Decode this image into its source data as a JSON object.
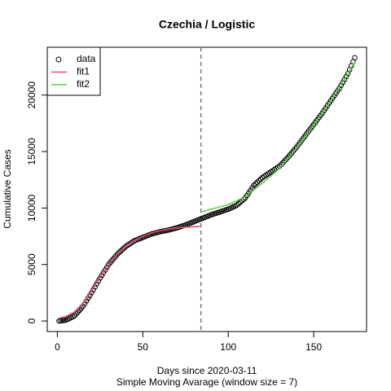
{
  "chart_data": {
    "type": "scatter",
    "title": "Czechia / Logistic",
    "xlabel": "Days since 2020-03-11",
    "subtitle": "Simple Moving Avarage (window size = 7)",
    "ylabel": "Cumulative Cases",
    "xlim": [
      -5.92,
      180.92
    ],
    "ylim": [
      -932,
      24232
    ],
    "xticks": [
      0,
      50,
      100,
      150
    ],
    "yticks": [
      0,
      5000,
      10000,
      15000,
      20000
    ],
    "vline": 84,
    "legend": "topleft",
    "series": [
      {
        "name": "data",
        "color": "#000000",
        "style": "points",
        "x": [
          1,
          2,
          3,
          4,
          5,
          6,
          7,
          8,
          9,
          10,
          11,
          12,
          13,
          14,
          15,
          16,
          17,
          18,
          19,
          20,
          21,
          22,
          23,
          24,
          25,
          26,
          27,
          28,
          29,
          30,
          31,
          32,
          33,
          34,
          35,
          36,
          37,
          38,
          39,
          40,
          41,
          42,
          43,
          44,
          45,
          46,
          47,
          48,
          49,
          50,
          51,
          52,
          53,
          54,
          55,
          56,
          57,
          58,
          59,
          60,
          61,
          62,
          63,
          64,
          65,
          66,
          67,
          68,
          69,
          70,
          71,
          72,
          73,
          74,
          75,
          76,
          77,
          78,
          79,
          80,
          81,
          82,
          83,
          84,
          85,
          86,
          87,
          88,
          89,
          90,
          91,
          92,
          93,
          94,
          95,
          96,
          97,
          98,
          99,
          100,
          101,
          102,
          103,
          104,
          105,
          106,
          107,
          108,
          109,
          110,
          111,
          112,
          113,
          114,
          115,
          116,
          117,
          118,
          119,
          120,
          121,
          122,
          123,
          124,
          125,
          126,
          127,
          128,
          129,
          130,
          131,
          132,
          133,
          134,
          135,
          136,
          137,
          138,
          139,
          140,
          141,
          142,
          143,
          144,
          145,
          146,
          147,
          148,
          149,
          150,
          151,
          152,
          153,
          154,
          155,
          156,
          157,
          158,
          159,
          160,
          161,
          162,
          163,
          164,
          165,
          166,
          167,
          168,
          169,
          170,
          171,
          172,
          173,
          174
        ],
        "values": [
          0,
          20,
          40,
          60,
          80,
          154,
          228,
          302,
          376,
          450,
          620,
          790,
          960,
          1130,
          1300,
          1540,
          1780,
          2020,
          2260,
          2500,
          2760,
          3020,
          3280,
          3540,
          3800,
          4040,
          4280,
          4520,
          4760,
          5000,
          5180,
          5360,
          5540,
          5720,
          5900,
          6040,
          6180,
          6320,
          6460,
          6600,
          6700,
          6800,
          6900,
          7000,
          7100,
          7160,
          7220,
          7280,
          7340,
          7400,
          7460,
          7520,
          7580,
          7640,
          7700,
          7740,
          7780,
          7820,
          7860,
          7900,
          7930,
          7960,
          7990,
          8020,
          8050,
          8090,
          8130,
          8170,
          8210,
          8250,
          8300,
          8350,
          8400,
          8450,
          8500,
          8560,
          8620,
          8680,
          8740,
          8800,
          8860,
          8920,
          8980,
          9040,
          9100,
          9160,
          9220,
          9280,
          9340,
          9400,
          9450,
          9500,
          9550,
          9600,
          9650,
          9700,
          9750,
          9800,
          9850,
          9900,
          9970,
          10040,
          10110,
          10180,
          10250,
          10380,
          10510,
          10640,
          10770,
          10900,
          11120,
          11340,
          11560,
          11780,
          12000,
          12140,
          12280,
          12420,
          12560,
          12700,
          12800,
          12900,
          13000,
          13100,
          13200,
          13300,
          13400,
          13500,
          13600,
          13700,
          13860,
          14020,
          14180,
          14340,
          14500,
          14680,
          14860,
          15040,
          15220,
          15400,
          15600,
          15800,
          16000,
          16200,
          16400,
          16600,
          16800,
          17000,
          17200,
          17400,
          17600,
          17800,
          18000,
          18200,
          18400,
          18620,
          18840,
          19060,
          19280,
          19500,
          19720,
          19940,
          20160,
          20380,
          20600,
          20860,
          21120,
          21380,
          21640,
          21900,
          22250,
          22600,
          22950,
          23300
        ]
      },
      {
        "name": "fit1",
        "color": "#DF536B",
        "style": "line",
        "x": [
          1,
          5,
          10,
          15,
          20,
          25,
          30,
          35,
          40,
          45,
          50,
          55,
          60,
          65,
          70,
          75,
          80,
          84
        ],
        "values": [
          250,
          400,
          800,
          1600,
          2700,
          3900,
          5000,
          5900,
          6600,
          7100,
          7500,
          7800,
          8000,
          8150,
          8250,
          8300,
          8350,
          8370
        ]
      },
      {
        "name": "fit2",
        "color": "#61D04F",
        "style": "line",
        "x": [
          84,
          90,
          100,
          110,
          120,
          130,
          140,
          150,
          160,
          170,
          174
        ],
        "values": [
          9650,
          9900,
          10300,
          11000,
          12200,
          13500,
          15300,
          17300,
          19500,
          21900,
          22900
        ]
      }
    ]
  }
}
